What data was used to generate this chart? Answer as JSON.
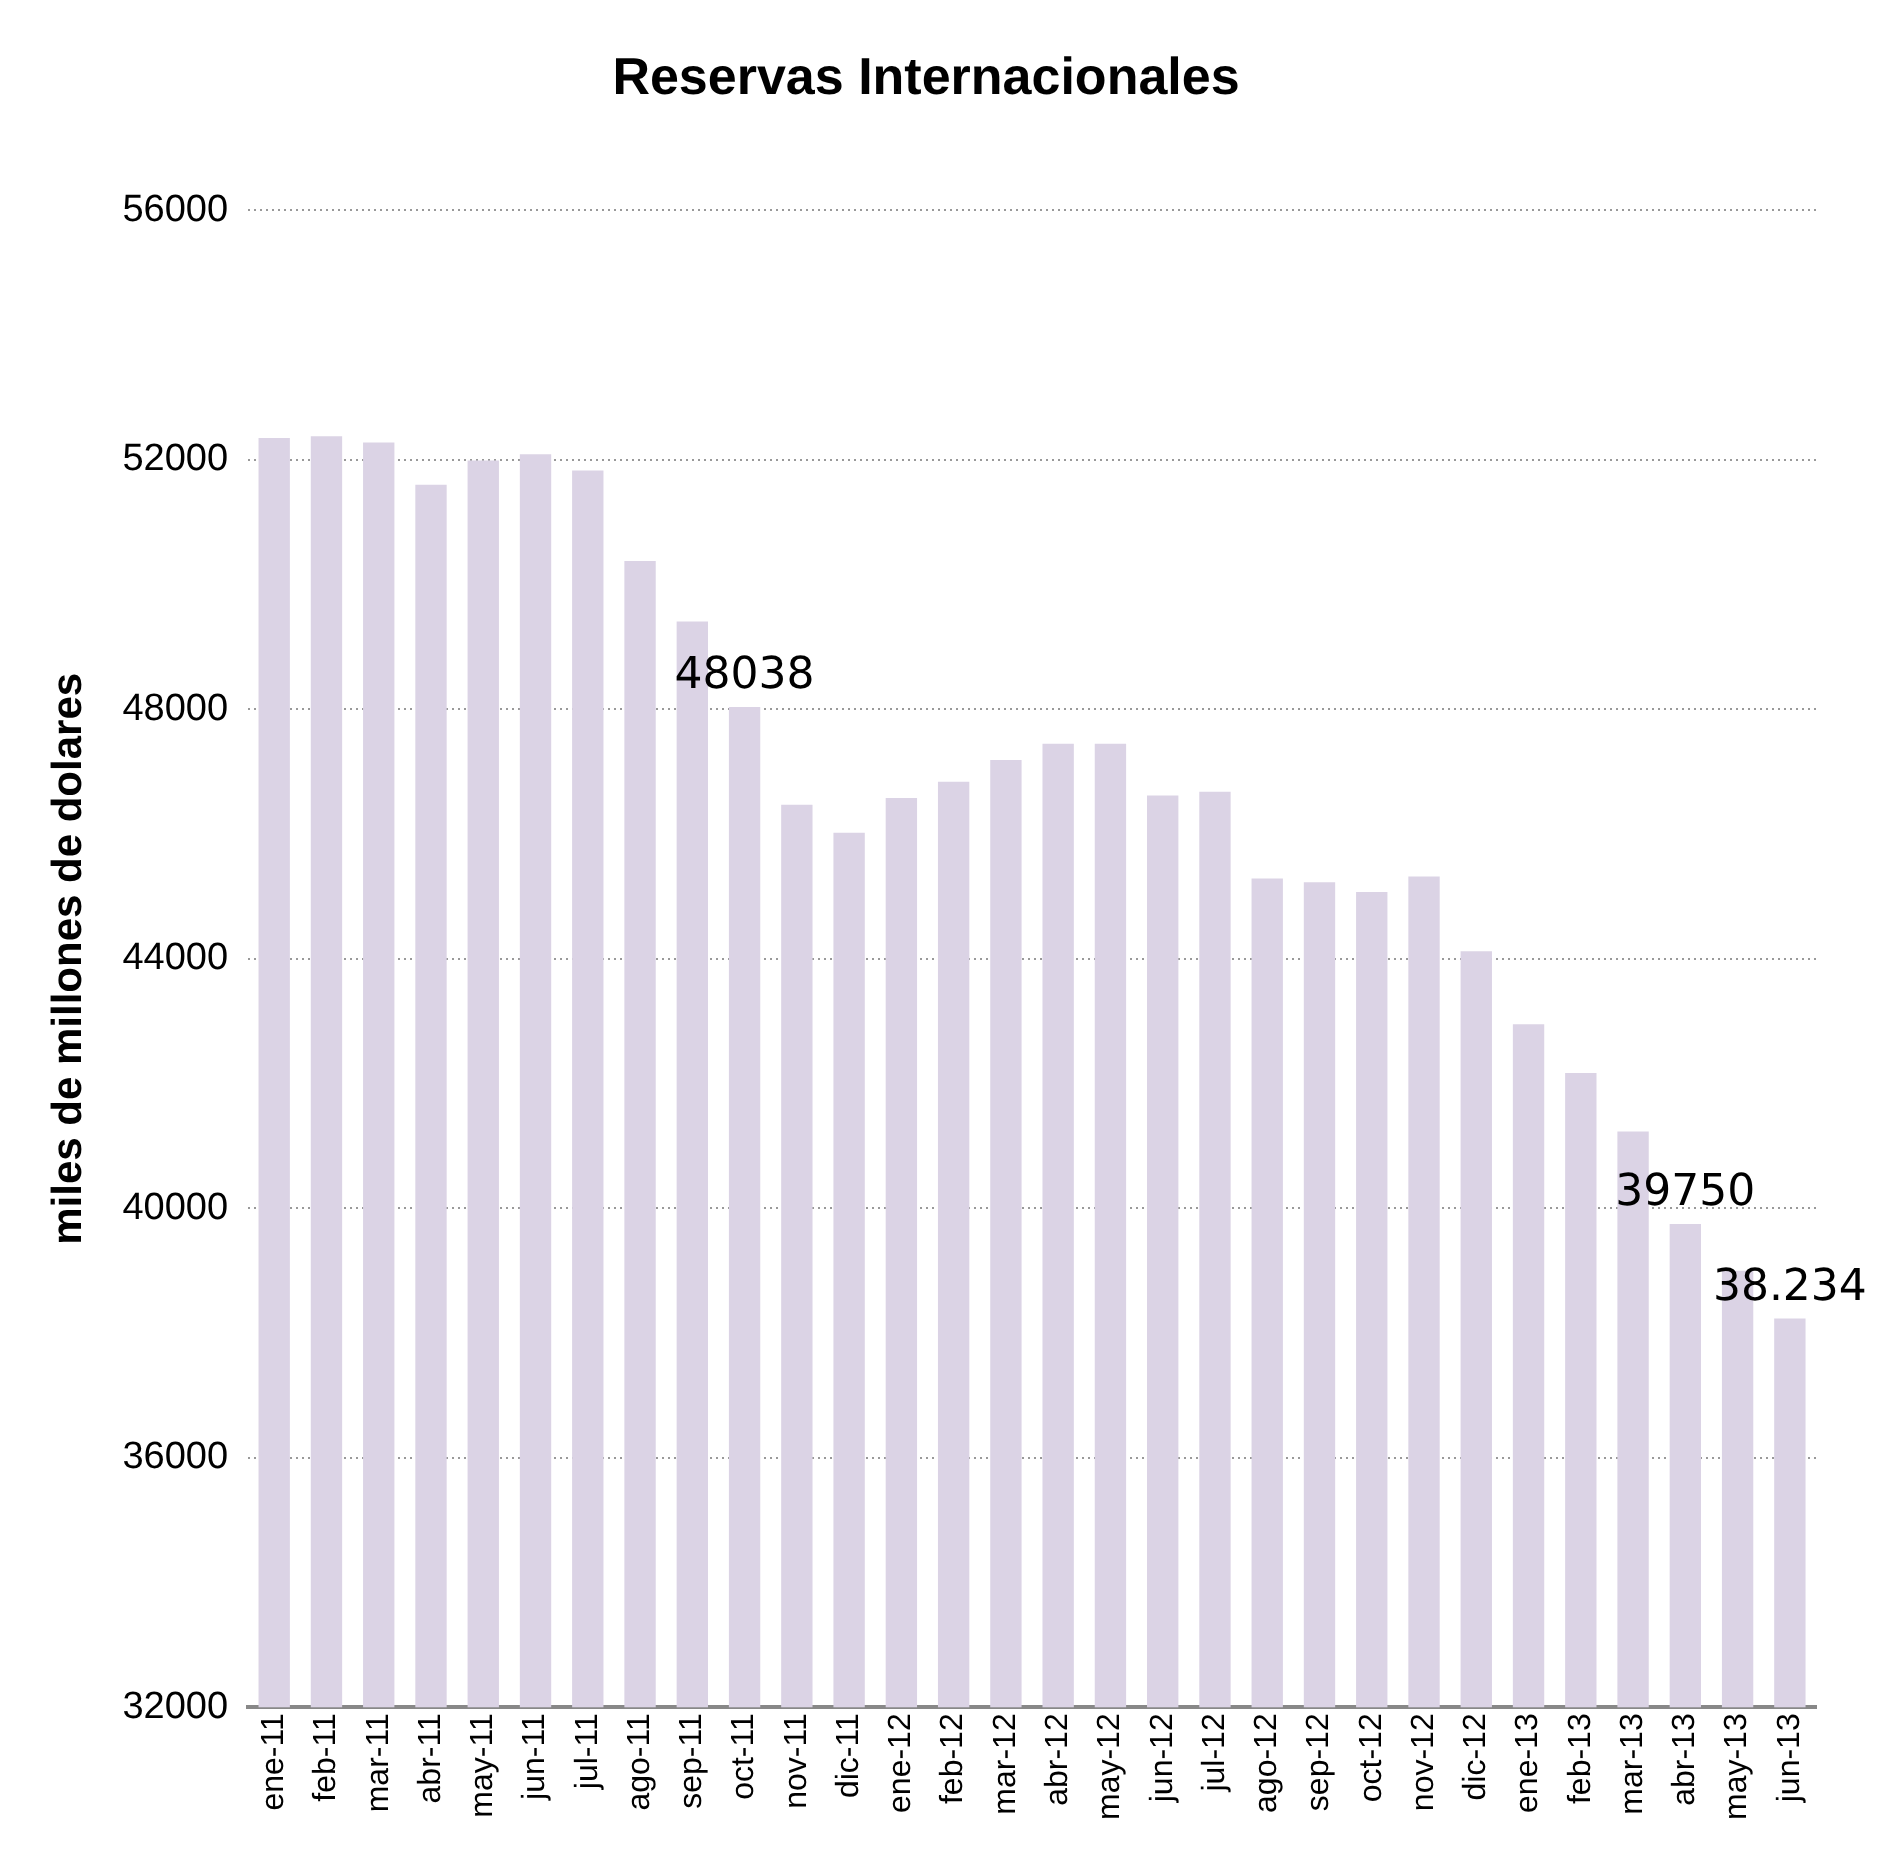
{
  "chart_data": {
    "type": "bar",
    "title": "Reservas Internacionales",
    "ylabel": "miles de millones de dolares",
    "categories": [
      "ene-11",
      "feb-11",
      "mar-11",
      "abr-11",
      "may-11",
      "jun-11",
      "jul-11",
      "ago-11",
      "sep-11",
      "oct-11",
      "nov-11",
      "dic-11",
      "ene-12",
      "feb-12",
      "mar-12",
      "abr-12",
      "may-12",
      "jun-12",
      "jul-12",
      "ago-12",
      "sep-12",
      "oct-12",
      "nov-12",
      "dic-12",
      "ene-13",
      "feb-13",
      "mar-13",
      "abr-13",
      "may-13",
      "jun-13"
    ],
    "values": [
      52350,
      52380,
      52280,
      51600,
      51990,
      52090,
      51830,
      50380,
      49410,
      48038,
      46470,
      46020,
      46580,
      46840,
      47190,
      47450,
      47450,
      46620,
      46680,
      45290,
      45230,
      45070,
      45320,
      44120,
      42950,
      42170,
      41230,
      39750,
      39000,
      38234
    ],
    "value_labels": [
      null,
      null,
      null,
      null,
      null,
      null,
      null,
      null,
      null,
      "48038",
      null,
      null,
      null,
      null,
      null,
      null,
      null,
      null,
      null,
      null,
      null,
      null,
      null,
      null,
      null,
      null,
      null,
      "39750",
      null,
      "38.234"
    ],
    "color": "#dbd3e5",
    "ylim": [
      32000,
      56000
    ],
    "yticks": [
      32000,
      36000,
      40000,
      44000,
      48000,
      52000,
      56000
    ],
    "grid": "y",
    "legend": false
  }
}
